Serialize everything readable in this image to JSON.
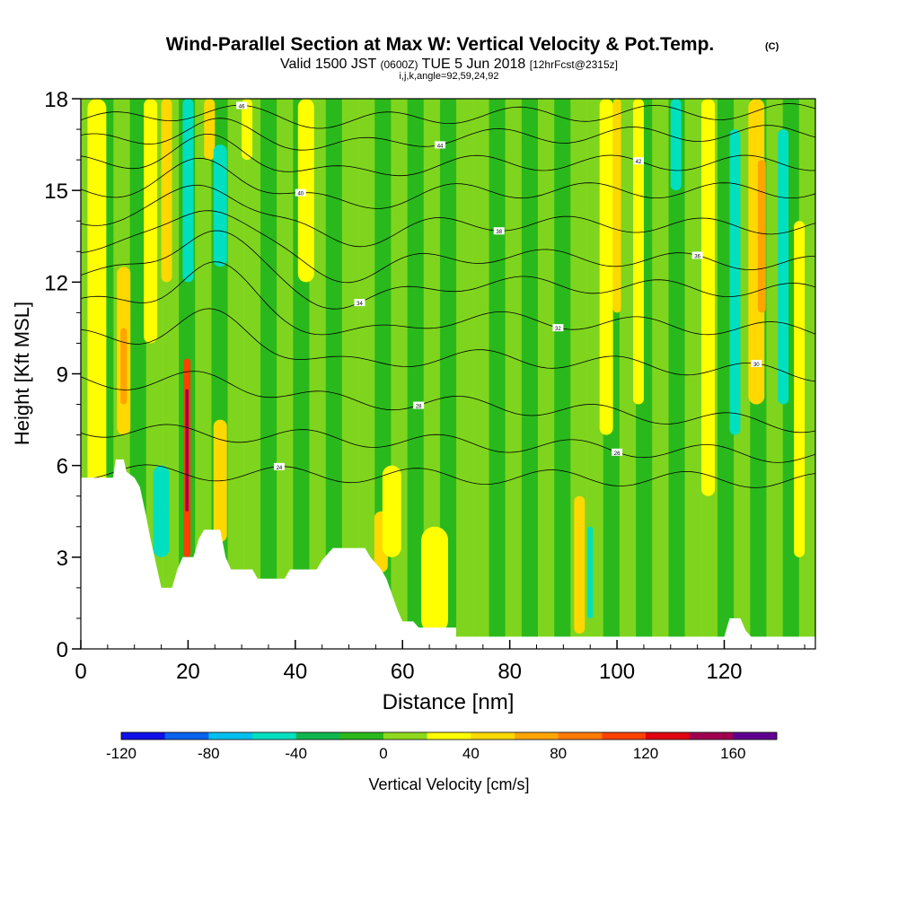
{
  "chart_data": {
    "type": "heatmap",
    "title": "Wind-Parallel Section at Max W: Vertical Velocity & Pot.Temp.",
    "title_mark": "(C)",
    "subtitle_main": "Valid 1500 JST",
    "subtitle_utc": "(0600Z)",
    "subtitle_date": "TUE 5 Jun 2018",
    "subtitle_fcst": "[12hrFcst@2315z]",
    "subtitle_info": "i,j,k,angle=92,59,24,92",
    "xlabel": "Distance [nm]",
    "ylabel": "Height [Kft MSL]",
    "xlim": [
      0,
      137
    ],
    "ylim": [
      0,
      18
    ],
    "x_ticks": [
      "0",
      "20",
      "40",
      "60",
      "80",
      "100",
      "120"
    ],
    "y_ticks": [
      "0",
      "3",
      "6",
      "9",
      "12",
      "15",
      "18"
    ],
    "colorbar": {
      "label": "Vertical Velocity [cm/s]",
      "ticks": [
        "-120",
        "-80",
        "-40",
        "0",
        "40",
        "80",
        "120",
        "160"
      ],
      "colors": [
        "#1010e8",
        "#0a62ee",
        "#00bfee",
        "#00e0c0",
        "#10b650",
        "#2ab81c",
        "#8ed91e",
        "#ffff00",
        "#ffd800",
        "#ffa500",
        "#ff7a00",
        "#ff4000",
        "#e00010",
        "#a00050",
        "#600090"
      ]
    },
    "velocity_columns": [
      {
        "x": 3,
        "w": 3.5,
        "class": 7,
        "ymin": 0,
        "ymax": 18
      },
      {
        "x": 8,
        "w": 2.5,
        "class": 8,
        "ymin": 7,
        "ymax": 12.5
      },
      {
        "x": 8,
        "w": 1.2,
        "class": 9,
        "ymin": 8,
        "ymax": 10.5
      },
      {
        "x": 13,
        "w": 2.5,
        "class": 7,
        "ymin": 10,
        "ymax": 18
      },
      {
        "x": 16,
        "w": 2.0,
        "class": 8,
        "ymin": 12,
        "ymax": 18
      },
      {
        "x": 20,
        "w": 2.0,
        "class": 3,
        "ymin": 12,
        "ymax": 18
      },
      {
        "x": 19.8,
        "w": 1.3,
        "class": 11,
        "ymin": 3,
        "ymax": 9.5
      },
      {
        "x": 19.8,
        "w": 0.6,
        "class": 13,
        "ymin": 4.5,
        "ymax": 8.5
      },
      {
        "x": 24,
        "w": 2.0,
        "class": 8,
        "ymin": 16,
        "ymax": 18
      },
      {
        "x": 26,
        "w": 2.5,
        "class": 3,
        "ymin": 12.5,
        "ymax": 16.5
      },
      {
        "x": 26,
        "w": 2.5,
        "class": 8,
        "ymin": 3.5,
        "ymax": 7.5
      },
      {
        "x": 31,
        "w": 2.0,
        "class": 7,
        "ymin": 16,
        "ymax": 18
      },
      {
        "x": 15,
        "w": 3.0,
        "class": 3,
        "ymin": 3,
        "ymax": 6
      },
      {
        "x": 42,
        "w": 3.0,
        "class": 7,
        "ymin": 12,
        "ymax": 18
      },
      {
        "x": 56,
        "w": 2.5,
        "class": 8,
        "ymin": 2.5,
        "ymax": 4.5
      },
      {
        "x": 58,
        "w": 3.5,
        "class": 7,
        "ymin": 3,
        "ymax": 6
      },
      {
        "x": 66,
        "w": 5.0,
        "class": 7,
        "ymin": 0.5,
        "ymax": 4
      },
      {
        "x": 93,
        "w": 2.0,
        "class": 8,
        "ymin": 0.5,
        "ymax": 5
      },
      {
        "x": 95,
        "w": 1.0,
        "class": 3,
        "ymin": 1,
        "ymax": 4
      },
      {
        "x": 98,
        "w": 2.5,
        "class": 7,
        "ymin": 7,
        "ymax": 18
      },
      {
        "x": 100,
        "w": 1.5,
        "class": 8,
        "ymin": 11,
        "ymax": 18
      },
      {
        "x": 104,
        "w": 2.0,
        "class": 7,
        "ymin": 8,
        "ymax": 18
      },
      {
        "x": 111,
        "w": 2.0,
        "class": 3,
        "ymin": 15,
        "ymax": 18
      },
      {
        "x": 117,
        "w": 2.5,
        "class": 7,
        "ymin": 5,
        "ymax": 18
      },
      {
        "x": 122,
        "w": 2.0,
        "class": 3,
        "ymin": 7,
        "ymax": 17
      },
      {
        "x": 126,
        "w": 3.0,
        "class": 8,
        "ymin": 8,
        "ymax": 18
      },
      {
        "x": 127,
        "w": 1.5,
        "class": 9,
        "ymin": 11,
        "ymax": 16
      },
      {
        "x": 131,
        "w": 2.0,
        "class": 3,
        "ymin": 8,
        "ymax": 17
      },
      {
        "x": 134,
        "w": 2.0,
        "class": 7,
        "ymin": 3,
        "ymax": 14
      }
    ],
    "terrain": [
      [
        0,
        5.6
      ],
      [
        6,
        5.6
      ],
      [
        6.5,
        6.2
      ],
      [
        8,
        6.2
      ],
      [
        8.5,
        5.8
      ],
      [
        10,
        5.6
      ],
      [
        11,
        5.3
      ],
      [
        12,
        4.5
      ],
      [
        13,
        3.6
      ],
      [
        14,
        2.8
      ],
      [
        15,
        2.0
      ],
      [
        17,
        2.0
      ],
      [
        18,
        2.6
      ],
      [
        19,
        3.0
      ],
      [
        21,
        3.0
      ],
      [
        22,
        3.6
      ],
      [
        23,
        3.9
      ],
      [
        26,
        3.9
      ],
      [
        27,
        3.0
      ],
      [
        28,
        2.6
      ],
      [
        32,
        2.6
      ],
      [
        33,
        2.3
      ],
      [
        38,
        2.3
      ],
      [
        39,
        2.6
      ],
      [
        44,
        2.6
      ],
      [
        45,
        2.9
      ],
      [
        47,
        3.3
      ],
      [
        53,
        3.3
      ],
      [
        54,
        3.0
      ],
      [
        56,
        2.6
      ],
      [
        57,
        2.3
      ],
      [
        58,
        1.8
      ],
      [
        59,
        1.3
      ],
      [
        60,
        0.9
      ],
      [
        62,
        0.9
      ],
      [
        63,
        0.7
      ],
      [
        70,
        0.7
      ],
      [
        70,
        0.4
      ],
      [
        120,
        0.4
      ],
      [
        121,
        1.0
      ],
      [
        123,
        1.0
      ],
      [
        124,
        0.6
      ],
      [
        125,
        0.4
      ],
      [
        137,
        0.4
      ]
    ],
    "theta_contours": [
      {
        "label": "46",
        "y0": 17.3,
        "bump": 0.3,
        "slope": 0.1
      },
      {
        "label": "44",
        "y0": 16.6,
        "bump": 0.5,
        "slope": 0.1
      },
      {
        "label": "42",
        "y0": 15.9,
        "bump": 0.7,
        "slope": 0.0
      },
      {
        "label": "40",
        "y0": 15.0,
        "bump": 0.9,
        "slope": 0.0
      },
      {
        "label": "38",
        "y0": 14.1,
        "bump": 1.2,
        "slope": -0.1
      },
      {
        "label": "36",
        "y0": 13.2,
        "bump": 1.5,
        "slope": -0.2
      },
      {
        "label": "34",
        "y0": 12.3,
        "bump": 1.6,
        "slope": -0.2
      },
      {
        "label": "32",
        "y0": 11.3,
        "bump": 1.4,
        "slope": -0.3
      },
      {
        "label": "30",
        "y0": 10.2,
        "bump": 0.9,
        "slope": -0.4
      },
      {
        "label": "28",
        "y0": 8.8,
        "bump": 0.3,
        "slope": -0.5
      },
      {
        "label": "26",
        "y0": 7.2,
        "bump": 0.0,
        "slope": -0.3
      },
      {
        "label": "24",
        "y0": 5.8,
        "bump": 0.0,
        "slope": -0.1
      }
    ]
  }
}
